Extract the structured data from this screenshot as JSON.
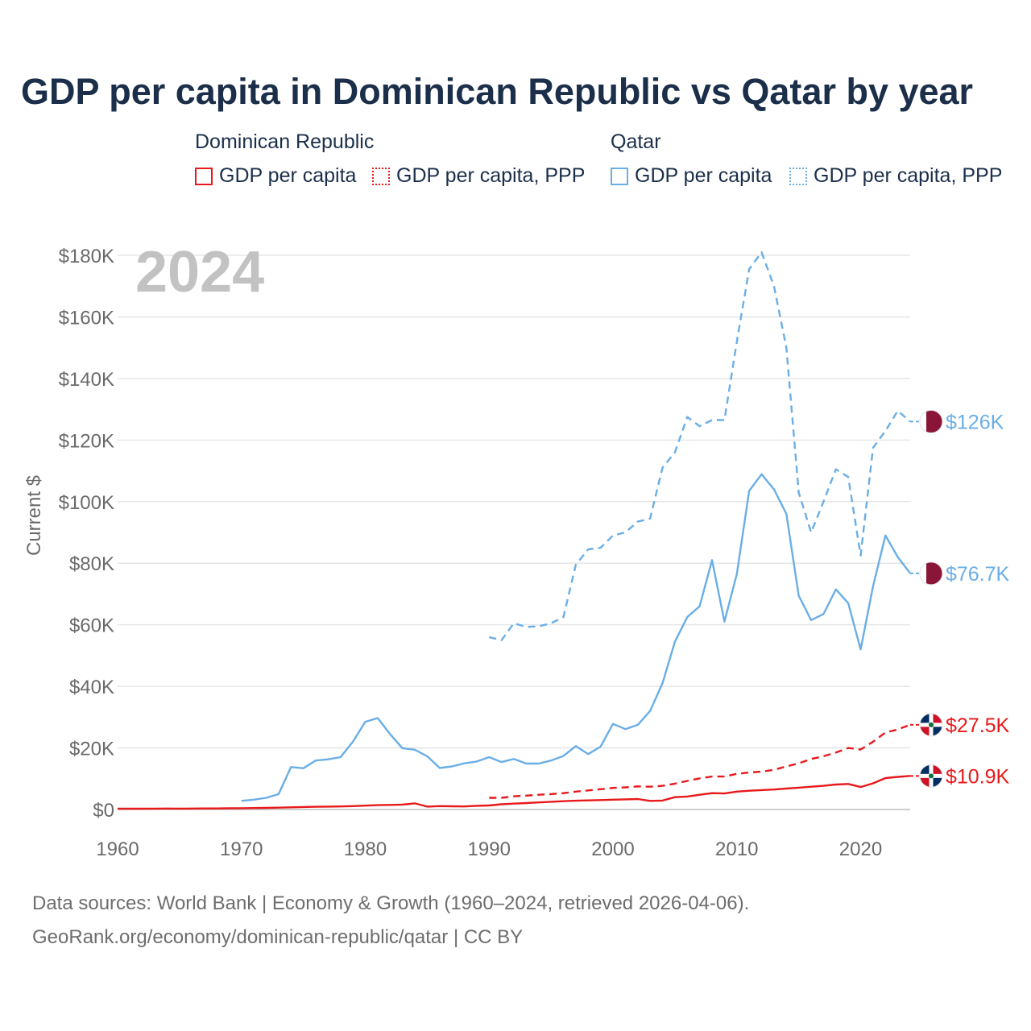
{
  "chart_data": {
    "type": "line",
    "title": "GDP per capita in Dominican Republic vs Qatar by year",
    "watermark_year": "2024",
    "ylabel": "Current $",
    "xlabel": "",
    "xlim": [
      1960,
      2024
    ],
    "ylim": [
      0,
      180000
    ],
    "x_ticks": [
      "1960",
      "1970",
      "1980",
      "1990",
      "2000",
      "2010",
      "2020"
    ],
    "y_ticks": [
      "$0",
      "$20K",
      "$40K",
      "$60K",
      "$80K",
      "$100K",
      "$120K",
      "$140K",
      "$160K",
      "$180K"
    ],
    "legend": {
      "groups": [
        {
          "name": "Dominican Republic",
          "items": [
            "GDP per capita",
            "GDP per capita, PPP"
          ]
        },
        {
          "name": "Qatar",
          "items": [
            "GDP per capita",
            "GDP per capita, PPP"
          ]
        }
      ]
    },
    "series": [
      {
        "name": "Qatar GDP per capita, PPP",
        "country": "Qatar",
        "color": "#6aaee6",
        "dash": "dashed",
        "end_label": "$126K",
        "x": [
          1990,
          1991,
          1992,
          1993,
          1994,
          1995,
          1996,
          1997,
          1998,
          1999,
          2000,
          2001,
          2002,
          2003,
          2004,
          2005,
          2006,
          2007,
          2008,
          2009,
          2010,
          2011,
          2012,
          2013,
          2014,
          2015,
          2016,
          2017,
          2018,
          2019,
          2020,
          2021,
          2022,
          2023,
          2024
        ],
        "values": [
          56000,
          55000,
          60500,
          59300,
          59500,
          60500,
          62500,
          79500,
          84500,
          85000,
          89000,
          90000,
          93500,
          94500,
          111000,
          116000,
          127500,
          124500,
          126500,
          126500,
          152000,
          175500,
          181000,
          170000,
          150000,
          103000,
          90000,
          100000,
          110500,
          108000,
          82500,
          117500,
          123000,
          129500,
          126000
        ]
      },
      {
        "name": "Qatar GDP per capita",
        "country": "Qatar",
        "color": "#6aaee6",
        "dash": "solid",
        "end_label": "$76.7K",
        "x": [
          1970,
          1971,
          1972,
          1973,
          1974,
          1975,
          1976,
          1977,
          1978,
          1979,
          1980,
          1981,
          1982,
          1983,
          1984,
          1985,
          1986,
          1987,
          1988,
          1989,
          1990,
          1991,
          1992,
          1993,
          1994,
          1995,
          1996,
          1997,
          1998,
          1999,
          2000,
          2001,
          2002,
          2003,
          2004,
          2005,
          2006,
          2007,
          2008,
          2009,
          2010,
          2011,
          2012,
          2013,
          2014,
          2015,
          2016,
          2017,
          2018,
          2019,
          2020,
          2021,
          2022,
          2023,
          2024
        ],
        "values": [
          2800,
          3200,
          3800,
          5000,
          13800,
          13400,
          15900,
          16300,
          17000,
          22000,
          28500,
          29700,
          24500,
          19900,
          19400,
          17300,
          13500,
          14000,
          15000,
          15600,
          17000,
          15400,
          16400,
          14900,
          14900,
          15900,
          17400,
          20600,
          18000,
          20400,
          27800,
          26100,
          27500,
          32000,
          41000,
          54500,
          62500,
          66000,
          81000,
          61000,
          76500,
          103500,
          108900,
          104000,
          96000,
          69500,
          61500,
          63500,
          71500,
          67000,
          52000,
          72500,
          89000,
          82000,
          76700
        ]
      },
      {
        "name": "Dominican Republic GDP per capita, PPP",
        "country": "Dominican Republic",
        "color": "#e8191b",
        "dash": "dashed",
        "end_label": "$27.5K",
        "x": [
          1990,
          1991,
          1992,
          1993,
          1994,
          1995,
          1996,
          1997,
          1998,
          1999,
          2000,
          2001,
          2002,
          2003,
          2004,
          2005,
          2006,
          2007,
          2008,
          2009,
          2010,
          2011,
          2012,
          2013,
          2014,
          2015,
          2016,
          2017,
          2018,
          2019,
          2020,
          2021,
          2022,
          2023,
          2024
        ],
        "values": [
          3800,
          3800,
          4300,
          4500,
          4800,
          5000,
          5300,
          5800,
          6200,
          6600,
          7000,
          7200,
          7500,
          7400,
          7700,
          8400,
          9300,
          10100,
          10700,
          10700,
          11600,
          12000,
          12300,
          12900,
          14000,
          15000,
          16400,
          17300,
          18500,
          20000,
          19500,
          22000,
          25000,
          26000,
          27500
        ]
      },
      {
        "name": "Dominican Republic GDP per capita",
        "country": "Dominican Republic",
        "color": "#e8191b",
        "dash": "solid",
        "end_label": "$10.9K",
        "x": [
          1960,
          1961,
          1962,
          1963,
          1964,
          1965,
          1966,
          1967,
          1968,
          1969,
          1970,
          1971,
          1972,
          1973,
          1974,
          1975,
          1976,
          1977,
          1978,
          1979,
          1980,
          1981,
          1982,
          1983,
          1984,
          1985,
          1986,
          1987,
          1988,
          1989,
          1990,
          1991,
          1992,
          1993,
          1994,
          1995,
          1996,
          1997,
          1998,
          1999,
          2000,
          2001,
          2002,
          2003,
          2004,
          2005,
          2006,
          2007,
          2008,
          2009,
          2010,
          2011,
          2012,
          2013,
          2014,
          2015,
          2016,
          2017,
          2018,
          2019,
          2020,
          2021,
          2022,
          2023,
          2024
        ],
        "values": [
          250,
          260,
          270,
          290,
          310,
          300,
          320,
          330,
          350,
          380,
          420,
          470,
          530,
          600,
          700,
          800,
          880,
          950,
          1000,
          1100,
          1250,
          1400,
          1500,
          1600,
          2000,
          950,
          1100,
          1050,
          1000,
          1200,
          1300,
          1700,
          1900,
          2100,
          2300,
          2500,
          2700,
          2850,
          2950,
          3050,
          3200,
          3300,
          3400,
          2800,
          2900,
          4000,
          4200,
          4800,
          5300,
          5200,
          5800,
          6100,
          6300,
          6500,
          6800,
          7100,
          7400,
          7700,
          8100,
          8300,
          7300,
          8500,
          10200,
          10600,
          10900
        ]
      }
    ]
  },
  "source": {
    "line1": "Data sources: World Bank | Economy & Growth (1960–2024, retrieved 2026-04-06).",
    "line2": "GeoRank.org/economy/dominican-republic/qatar | CC BY"
  }
}
